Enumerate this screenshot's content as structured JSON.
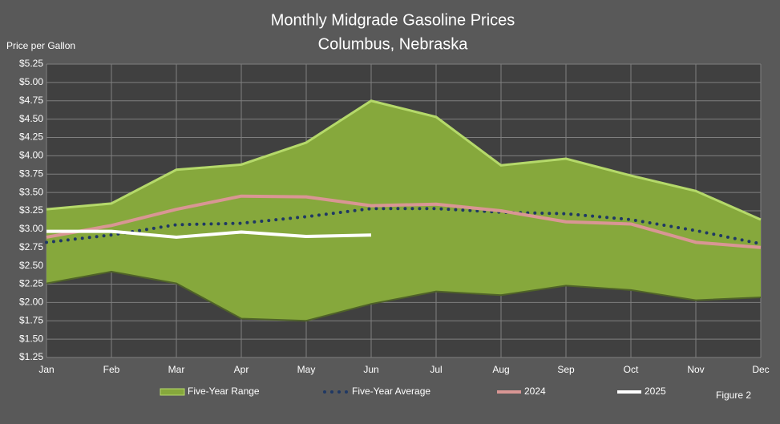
{
  "chart_data": {
    "type": "line",
    "title": "Monthly Midgrade Gasoline Prices",
    "subtitle": "Columbus, Nebraska",
    "y_label": "Price per Gallon",
    "annotation": "Figure 2",
    "categories": [
      "Jan",
      "Feb",
      "Mar",
      "Apr",
      "May",
      "Jun",
      "Jul",
      "Aug",
      "Sep",
      "Oct",
      "Nov",
      "Dec"
    ],
    "series": [
      {
        "name": "Five-Year Range",
        "color": "#86a83c",
        "type": "range",
        "high": [
          3.27,
          3.35,
          3.81,
          3.88,
          4.18,
          4.75,
          4.53,
          3.87,
          3.96,
          3.73,
          3.52,
          3.13
        ],
        "low": [
          2.26,
          2.42,
          2.26,
          1.78,
          1.75,
          1.98,
          2.15,
          2.1,
          2.23,
          2.17,
          2.03,
          2.07
        ]
      },
      {
        "name": "Five-Year Average",
        "color": "#1f3864",
        "type": "dotted",
        "values": [
          2.82,
          2.92,
          3.06,
          3.08,
          3.17,
          3.28,
          3.28,
          3.23,
          3.21,
          3.13,
          2.98,
          2.8
        ]
      },
      {
        "name": "2024",
        "color": "#d99694",
        "type": "line",
        "values": [
          2.89,
          3.05,
          3.27,
          3.45,
          3.44,
          3.32,
          3.34,
          3.25,
          3.1,
          3.07,
          2.82,
          2.75
        ]
      },
      {
        "name": "2025",
        "color": "#ffffff",
        "type": "line",
        "values": [
          2.97,
          2.97,
          2.89,
          2.96,
          2.9,
          2.92,
          null,
          null,
          null,
          null,
          null,
          null
        ]
      }
    ],
    "ylim": [
      1.25,
      5.25
    ],
    "yticks": [
      {
        "value": 1.25,
        "label": "$1.25"
      },
      {
        "value": 1.5,
        "label": "$1.50"
      },
      {
        "value": 1.75,
        "label": "$1.75"
      },
      {
        "value": 2,
        "label": "$2.00"
      },
      {
        "value": 2.25,
        "label": "$2.25"
      },
      {
        "value": 2.5,
        "label": "$2.50"
      },
      {
        "value": 2.75,
        "label": "$2.75"
      },
      {
        "value": 3,
        "label": "$3.00"
      },
      {
        "value": 3.25,
        "label": "$3.25"
      },
      {
        "value": 3.5,
        "label": "$3.50"
      },
      {
        "value": 3.75,
        "label": "$3.75"
      },
      {
        "value": 4,
        "label": "$4.00"
      },
      {
        "value": 4.25,
        "label": "$4.25"
      },
      {
        "value": 4.5,
        "label": "$4.50"
      },
      {
        "value": 4.75,
        "label": "$4.75"
      },
      {
        "value": 5,
        "label": "$5.00"
      },
      {
        "value": 5.25,
        "label": "$5.25"
      }
    ],
    "grid": true,
    "legend": "bottom"
  }
}
